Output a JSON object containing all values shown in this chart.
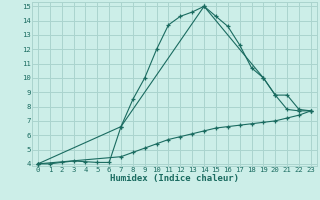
{
  "xlabel": "Humidex (Indice chaleur)",
  "bg_color": "#cceee8",
  "grid_color": "#aad4ce",
  "line_color": "#1a6b60",
  "xlim": [
    -0.5,
    23.5
  ],
  "ylim": [
    3.85,
    15.3
  ],
  "xticks": [
    0,
    1,
    2,
    3,
    4,
    5,
    6,
    7,
    8,
    9,
    10,
    11,
    12,
    13,
    14,
    15,
    16,
    17,
    18,
    19,
    20,
    21,
    22,
    23
  ],
  "yticks": [
    4,
    5,
    6,
    7,
    8,
    9,
    10,
    11,
    12,
    13,
    14,
    15
  ],
  "line1_x": [
    0,
    1,
    2,
    3,
    4,
    5,
    6,
    7,
    8,
    9,
    10,
    11,
    12,
    13,
    14,
    15,
    16,
    17,
    18,
    19,
    20,
    21,
    22,
    23
  ],
  "line1_y": [
    4.0,
    4.0,
    4.1,
    4.2,
    4.15,
    4.1,
    4.1,
    6.6,
    8.5,
    10.0,
    12.0,
    13.7,
    14.3,
    14.6,
    15.0,
    14.3,
    13.6,
    12.3,
    10.7,
    10.0,
    8.8,
    7.8,
    7.7,
    7.7
  ],
  "line2_x": [
    0,
    7,
    14,
    19,
    20,
    21,
    22,
    23
  ],
  "line2_y": [
    4.0,
    6.6,
    15.0,
    10.0,
    8.8,
    8.8,
    7.8,
    7.7
  ],
  "line3_x": [
    0,
    7,
    8,
    9,
    10,
    11,
    12,
    13,
    14,
    15,
    16,
    17,
    18,
    19,
    20,
    21,
    22,
    23
  ],
  "line3_y": [
    4.0,
    4.5,
    4.8,
    5.1,
    5.4,
    5.7,
    5.9,
    6.1,
    6.3,
    6.5,
    6.6,
    6.7,
    6.8,
    6.9,
    7.0,
    7.2,
    7.4,
    7.7
  ]
}
